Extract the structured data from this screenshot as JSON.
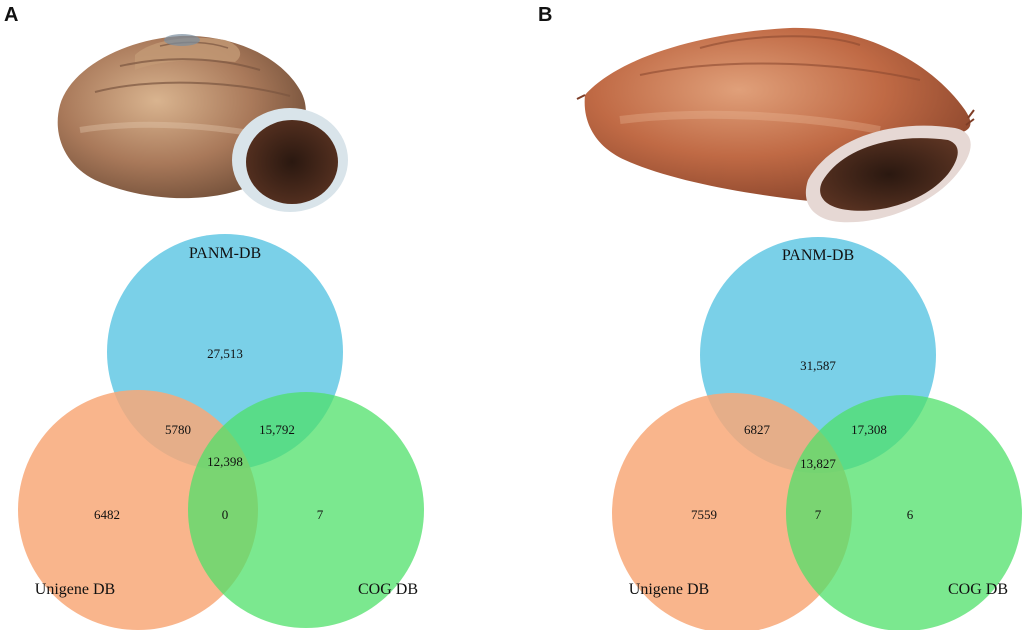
{
  "panels": [
    {
      "letter": "A",
      "photo": "shell-photo-1",
      "venn": {
        "labels": {
          "top": "PANM-DB",
          "left": "Unigene DB",
          "right": "COG DB"
        },
        "values": {
          "top_only": "27,513",
          "top_left": "5780",
          "top_right": "15,792",
          "center": "12,398",
          "left_only": "6482",
          "left_right": "0",
          "right_only": "7"
        }
      }
    },
    {
      "letter": "B",
      "photo": "shell-photo-2",
      "venn": {
        "labels": {
          "top": "PANM-DB",
          "left": "Unigene DB",
          "right": "COG DB"
        },
        "values": {
          "top_only": "31,587",
          "top_left": "6827",
          "top_right": "17,308",
          "center": "13,827",
          "left_only": "7559",
          "left_right": "7",
          "right_only": "6"
        }
      }
    }
  ],
  "colors": {
    "circle_top": "#6ccbe6",
    "circle_left": "#f8a878",
    "circle_right": "#5fe07a"
  }
}
